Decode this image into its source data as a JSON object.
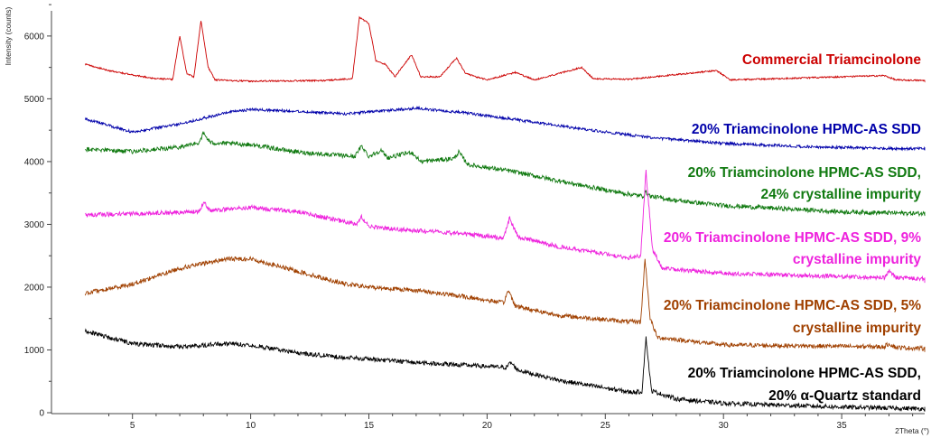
{
  "chart_data": {
    "type": "line",
    "xlabel": "2Theta (°)",
    "ylabel": "Intensity (counts)",
    "xlim": [
      3,
      40
    ],
    "ylim": [
      0,
      6500
    ],
    "x_ticks": [
      5,
      10,
      15,
      20,
      25,
      30,
      35
    ],
    "y_ticks": [
      0,
      1000,
      2000,
      3000,
      4000,
      5000,
      6000
    ],
    "grid": false,
    "legend": "none",
    "series": [
      {
        "label_lines": [
          "Commercial Triamcinolone"
        ],
        "color": "#cc0000",
        "noise": 12,
        "values": [
          [
            3,
            5550
          ],
          [
            4,
            5450
          ],
          [
            5,
            5380
          ],
          [
            6,
            5320
          ],
          [
            6.7,
            5310
          ],
          [
            7.0,
            6000
          ],
          [
            7.3,
            5400
          ],
          [
            7.6,
            5350
          ],
          [
            7.9,
            6250
          ],
          [
            8.2,
            5500
          ],
          [
            8.5,
            5300
          ],
          [
            10,
            5280
          ],
          [
            13,
            5290
          ],
          [
            14.3,
            5320
          ],
          [
            14.6,
            6300
          ],
          [
            15.0,
            6200
          ],
          [
            15.3,
            5600
          ],
          [
            15.7,
            5550
          ],
          [
            16.1,
            5350
          ],
          [
            16.8,
            5700
          ],
          [
            17.2,
            5350
          ],
          [
            18.0,
            5350
          ],
          [
            18.7,
            5650
          ],
          [
            19.1,
            5400
          ],
          [
            20,
            5300
          ],
          [
            21.2,
            5420
          ],
          [
            22,
            5300
          ],
          [
            24.0,
            5500
          ],
          [
            24.5,
            5320
          ],
          [
            26,
            5310
          ],
          [
            29.7,
            5450
          ],
          [
            30.3,
            5300
          ],
          [
            36.8,
            5370
          ],
          [
            37.3,
            5300
          ],
          [
            40,
            5280
          ]
        ]
      },
      {
        "label_lines": [
          "20% Triamcinolone HPMC-AS SDD"
        ],
        "color": "#0000aa",
        "noise": 22,
        "values": [
          [
            3,
            4680
          ],
          [
            5,
            4470
          ],
          [
            7,
            4600
          ],
          [
            9,
            4780
          ],
          [
            10,
            4830
          ],
          [
            12,
            4800
          ],
          [
            14,
            4760
          ],
          [
            16,
            4820
          ],
          [
            17,
            4850
          ],
          [
            19,
            4780
          ],
          [
            21,
            4680
          ],
          [
            24,
            4520
          ],
          [
            27,
            4380
          ],
          [
            30,
            4290
          ],
          [
            34,
            4230
          ],
          [
            37,
            4210
          ],
          [
            40,
            4200
          ]
        ]
      },
      {
        "label_lines": [
          "20% Triamcinolone HPMC-AS SDD,",
          "24% crystalline impurity"
        ],
        "color": "#117a11",
        "noise": 35,
        "values": [
          [
            3,
            4200
          ],
          [
            5,
            4160
          ],
          [
            7,
            4230
          ],
          [
            7.8,
            4300
          ],
          [
            8.0,
            4450
          ],
          [
            8.3,
            4300
          ],
          [
            10,
            4270
          ],
          [
            12,
            4150
          ],
          [
            14.4,
            4080
          ],
          [
            14.7,
            4250
          ],
          [
            15.0,
            4080
          ],
          [
            15.5,
            4180
          ],
          [
            15.8,
            4060
          ],
          [
            16.8,
            4150
          ],
          [
            17.2,
            4000
          ],
          [
            18.6,
            4050
          ],
          [
            18.8,
            4150
          ],
          [
            19.2,
            3950
          ],
          [
            21,
            3850
          ],
          [
            24,
            3620
          ],
          [
            26,
            3480
          ],
          [
            26.6,
            3450
          ],
          [
            26.7,
            3520
          ],
          [
            26.9,
            3450
          ],
          [
            28,
            3380
          ],
          [
            30,
            3300
          ],
          [
            35,
            3200
          ],
          [
            40,
            3160
          ]
        ]
      },
      {
        "label_lines": [
          "20% Triamcinolone HPMC-AS SDD, 9%",
          "crystalline impurity"
        ],
        "color": "#ee22dd",
        "noise": 35,
        "values": [
          [
            3,
            3150
          ],
          [
            6,
            3180
          ],
          [
            7.8,
            3200
          ],
          [
            8.0,
            3350
          ],
          [
            8.3,
            3220
          ],
          [
            10,
            3270
          ],
          [
            12,
            3200
          ],
          [
            14.5,
            3000
          ],
          [
            14.7,
            3120
          ],
          [
            15.0,
            2960
          ],
          [
            17,
            2900
          ],
          [
            19,
            2850
          ],
          [
            20.7,
            2780
          ],
          [
            20.95,
            3100
          ],
          [
            21.3,
            2800
          ],
          [
            23,
            2650
          ],
          [
            26,
            2470
          ],
          [
            26.5,
            2500
          ],
          [
            26.72,
            3850
          ],
          [
            27.0,
            2600
          ],
          [
            27.4,
            2300
          ],
          [
            30,
            2220
          ],
          [
            36.8,
            2150
          ],
          [
            37,
            2250
          ],
          [
            37.3,
            2150
          ],
          [
            40,
            2100
          ]
        ]
      },
      {
        "label_lines": [
          "20% Triamcinolone HPMC-AS SDD, 5%",
          "crystalline impurity"
        ],
        "color": "#a04000",
        "noise": 35,
        "values": [
          [
            3,
            1900
          ],
          [
            5,
            2050
          ],
          [
            7,
            2300
          ],
          [
            9,
            2450
          ],
          [
            10,
            2450
          ],
          [
            12,
            2250
          ],
          [
            14,
            2050
          ],
          [
            15,
            2000
          ],
          [
            17,
            1950
          ],
          [
            19,
            1850
          ],
          [
            20.7,
            1750
          ],
          [
            20.9,
            1950
          ],
          [
            21.2,
            1700
          ],
          [
            23,
            1550
          ],
          [
            26,
            1450
          ],
          [
            26.5,
            1450
          ],
          [
            26.68,
            2450
          ],
          [
            26.9,
            1500
          ],
          [
            27.2,
            1200
          ],
          [
            30,
            1080
          ],
          [
            36.8,
            1050
          ],
          [
            37,
            1100
          ],
          [
            37.3,
            1040
          ],
          [
            40,
            1000
          ]
        ]
      },
      {
        "label_lines": [
          "20% Triamcinolone HPMC-AS SDD,",
          "20% α-Quartz standard"
        ],
        "color": "#000000",
        "noise": 35,
        "values": [
          [
            3,
            1300
          ],
          [
            5,
            1100
          ],
          [
            7,
            1050
          ],
          [
            9,
            1100
          ],
          [
            10,
            1080
          ],
          [
            12,
            950
          ],
          [
            14,
            880
          ],
          [
            17,
            800
          ],
          [
            19,
            760
          ],
          [
            20.8,
            720
          ],
          [
            21.0,
            800
          ],
          [
            21.3,
            680
          ],
          [
            23,
            520
          ],
          [
            26,
            330
          ],
          [
            26.55,
            330
          ],
          [
            26.72,
            1200
          ],
          [
            26.95,
            350
          ],
          [
            28,
            220
          ],
          [
            30,
            150
          ],
          [
            35,
            90
          ],
          [
            40,
            50
          ]
        ]
      }
    ]
  }
}
